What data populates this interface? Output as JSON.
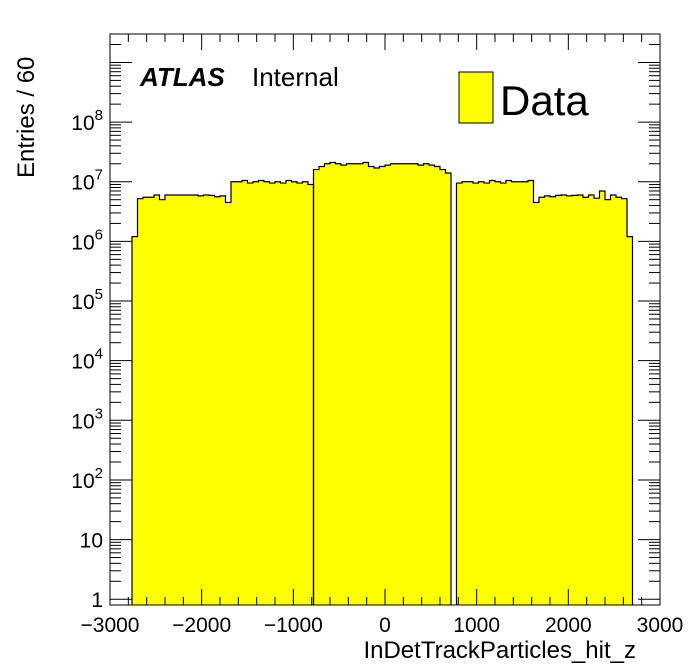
{
  "chart_data": {
    "type": "bar",
    "title": "",
    "xlabel": "InDetTrackParticles_hit_z",
    "ylabel": "Entries / 60",
    "xlim": [
      -3000,
      3000
    ],
    "ylim": [
      0.8,
      3000000000
    ],
    "log_y": true,
    "bin_width": 60,
    "grid": false,
    "legend_placement": "top-right",
    "series_color": "#ffff00",
    "x_ticks": [
      -3000,
      -2000,
      -1000,
      0,
      1000,
      2000,
      3000
    ],
    "x_tick_labels": [
      "−3000",
      "−2000",
      "−1000",
      "0",
      "1000",
      "2000",
      "3000"
    ],
    "y_ticks": [
      {
        "value": 1,
        "base": "1",
        "exp": ""
      },
      {
        "value": 10,
        "base": "10",
        "exp": ""
      },
      {
        "value": 100,
        "base": "10",
        "exp": "2"
      },
      {
        "value": 1000,
        "base": "10",
        "exp": "3"
      },
      {
        "value": 10000,
        "base": "10",
        "exp": "4"
      },
      {
        "value": 100000,
        "base": "10",
        "exp": "5"
      },
      {
        "value": 1000000,
        "base": "10",
        "exp": "6"
      },
      {
        "value": 10000000,
        "base": "10",
        "exp": "7"
      },
      {
        "value": 100000000,
        "base": "10",
        "exp": "8"
      }
    ],
    "atlas_label": "ATLAS",
    "atlas_sublabel": "Internal",
    "series": [
      {
        "name": "Data",
        "bins": [
          {
            "x_low": -2760,
            "values": [
              1200000,
              5200000,
              5500000,
              5500000,
              6000000,
              5000000,
              6000000,
              6000000,
              6000000,
              6000000,
              6000000,
              6000000,
              5800000,
              6000000,
              5900000,
              5600000,
              5800000,
              4500000,
              10000000,
              10000000,
              10500000,
              9500000,
              10000000,
              10500000,
              10000000,
              9500000,
              10000000,
              9500000,
              10500000,
              10000000,
              9500000,
              10000000,
              9000000
            ]
          },
          {
            "x_low": -780,
            "values": [
              16000000,
              18000000,
              20000000,
              21000000,
              20000000,
              19000000,
              20000000,
              20000000,
              20000000,
              21000000,
              18000000,
              17000000,
              18000000,
              19000000,
              20000000,
              20000000,
              20000000,
              20000000,
              20000000,
              19000000,
              20000000,
              19000000,
              18000000,
              16000000,
              14000000
            ]
          },
          {
            "x_low": 780,
            "values": [
              9500000,
              10000000,
              10000000,
              9500000,
              10000000,
              9500000,
              10500000,
              10000000,
              9500000,
              10500000,
              10000000,
              10000000,
              10000000,
              10500000,
              4500000,
              5500000,
              5800000,
              5600000,
              5900000,
              6000000,
              5800000,
              5900000,
              6000000,
              5500000,
              6000000,
              5300000,
              7000000,
              5000000,
              6000000,
              5500000,
              5200000,
              1200000
            ]
          }
        ]
      }
    ]
  }
}
